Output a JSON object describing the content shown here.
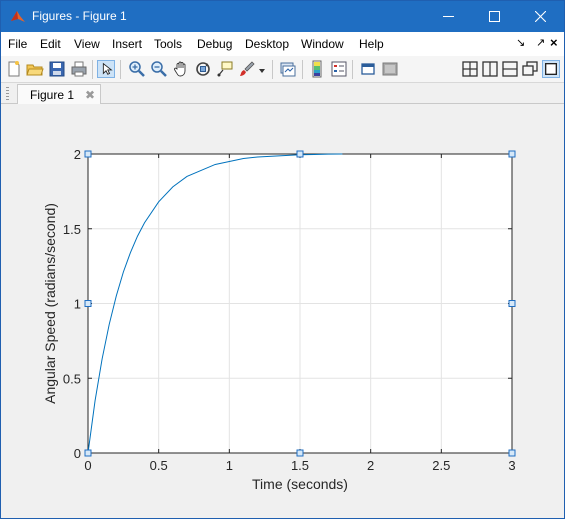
{
  "window": {
    "title": "Figures - Figure 1",
    "controls": [
      "minimize",
      "maximize",
      "close"
    ]
  },
  "menubar": {
    "items": [
      {
        "label": "File"
      },
      {
        "label": "Edit"
      },
      {
        "label": "View"
      },
      {
        "label": "Insert"
      },
      {
        "label": "Tools"
      },
      {
        "label": "Debug"
      },
      {
        "label": "Desktop"
      },
      {
        "label": "Window"
      },
      {
        "label": "Help"
      }
    ],
    "right_controls": [
      "↘",
      "↗",
      "×"
    ]
  },
  "toolbar": {
    "left_tools": [
      "new-figure-icon",
      "open-file-icon",
      "save-icon",
      "print-icon",
      "edit-plot-arrow-icon",
      "zoom-in-icon",
      "zoom-out-icon",
      "pan-hand-icon",
      "rotate-3d-icon",
      "data-cursor-icon",
      "brush-icon",
      "link-plot-icon",
      "insert-colorbar-icon",
      "insert-legend-icon",
      "hide-plot-tools-icon",
      "show-plot-tools-icon"
    ],
    "right_tools": [
      "tile-layout-icon",
      "left-right-layout-icon",
      "top-bottom-layout-icon",
      "float-icon",
      "maximize-figure-icon"
    ],
    "selected_tool": "edit-plot-arrow-icon"
  },
  "tabs": [
    {
      "label": "Figure 1",
      "close": "✖"
    }
  ],
  "chart_data": {
    "type": "line",
    "title": "",
    "xlabel": "Time (seconds)",
    "ylabel": "Angular Speed (radians/second)",
    "xlim": [
      0,
      3
    ],
    "ylim": [
      0,
      2
    ],
    "xticks": [
      0,
      0.5,
      1,
      1.5,
      2,
      2.5,
      3
    ],
    "xtick_labels": [
      "0",
      "0.5",
      "1",
      "1.5",
      "2",
      "2.5",
      "3"
    ],
    "yticks": [
      0,
      0.5,
      1,
      1.5,
      2
    ],
    "ytick_labels": [
      "0",
      "0.5",
      "1",
      "1.5",
      "2"
    ],
    "grid": true,
    "line_color": "#0072bd",
    "series": [
      {
        "x": [
          0,
          0.05,
          0.1,
          0.15,
          0.2,
          0.25,
          0.3,
          0.35,
          0.4,
          0.5,
          0.6,
          0.7,
          0.8,
          0.9,
          1.0,
          1.1,
          1.2,
          1.3,
          1.4,
          1.5,
          1.6,
          1.7,
          1.8
        ],
        "y": [
          0,
          0.35,
          0.63,
          0.86,
          1.05,
          1.21,
          1.34,
          1.45,
          1.54,
          1.68,
          1.78,
          1.85,
          1.89,
          1.93,
          1.95,
          1.97,
          1.98,
          1.985,
          1.99,
          1.995,
          1.997,
          1.999,
          2.0
        ]
      }
    ],
    "selection_handles": [
      {
        "x": 0,
        "y": 0
      },
      {
        "x": 1.5,
        "y": 0
      },
      {
        "x": 3,
        "y": 0
      },
      {
        "x": 0,
        "y": 1
      },
      {
        "x": 3,
        "y": 1
      },
      {
        "x": 0,
        "y": 2
      },
      {
        "x": 1.5,
        "y": 2
      },
      {
        "x": 3,
        "y": 2
      }
    ]
  }
}
